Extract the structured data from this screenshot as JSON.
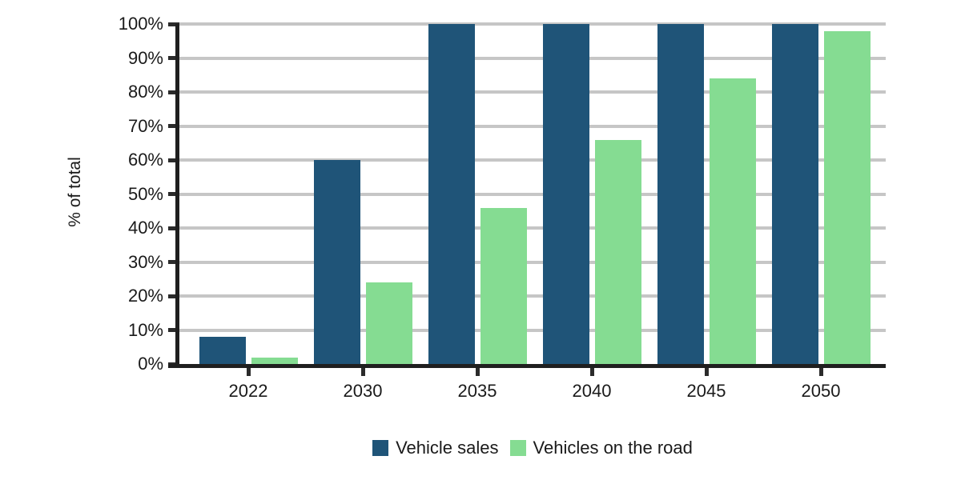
{
  "chart_data": {
    "type": "bar",
    "title": "",
    "ylabel": "% of total",
    "xlabel": "",
    "categories": [
      "2022",
      "2030",
      "2035",
      "2040",
      "2045",
      "2050"
    ],
    "series": [
      {
        "name": "Vehicle sales",
        "color": "#1F5478",
        "values": [
          8,
          60,
          100,
          100,
          100,
          100
        ]
      },
      {
        "name": "Vehicles on the road",
        "color": "#85DC92",
        "values": [
          2,
          24,
          46,
          66,
          84,
          98
        ]
      }
    ],
    "y_axis": {
      "min": 0,
      "max": 100,
      "step": 10,
      "tick_suffix": "%"
    },
    "ylim": [
      0,
      100
    ],
    "grid": "horizontal",
    "legend_position": "bottom"
  },
  "colors": {
    "background": "#FFFFFF",
    "gridline": "#C6C6C6",
    "axis": "#1F1F1F",
    "text": "#1A1A1A"
  }
}
